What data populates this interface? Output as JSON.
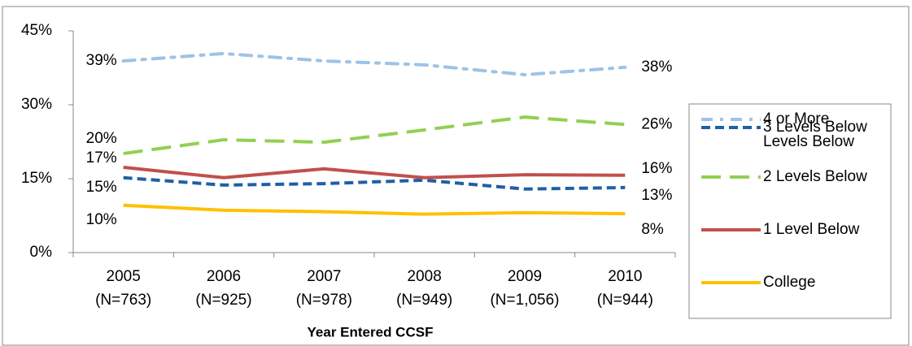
{
  "chart_data": {
    "type": "line",
    "x_label": "Year Entered CCSF",
    "categories": [
      [
        "2005",
        "(N=763)"
      ],
      [
        "2006",
        "(N=925)"
      ],
      [
        "2007",
        "(N=978)"
      ],
      [
        "2008",
        "(N=949)"
      ],
      [
        "2009",
        "(N=1,056)"
      ],
      [
        "2010",
        "(N=944)"
      ]
    ],
    "ylim": [
      0,
      45
    ],
    "yticks": [
      {
        "value": 0,
        "label": "0%"
      },
      {
        "value": 15,
        "label": "15%"
      },
      {
        "value": 30,
        "label": "30%"
      },
      {
        "value": 45,
        "label": "45%"
      }
    ],
    "grid": false,
    "legend": "right",
    "series": [
      {
        "name": "4 or More Levels Below",
        "color": "#9dc3e6",
        "dash": "dash-dot",
        "values": [
          38.9,
          40.4,
          38.9,
          38.1,
          36.1,
          37.6
        ],
        "value_labels": [
          "39%",
          null,
          null,
          null,
          null,
          "38%"
        ]
      },
      {
        "name": "3 Levels Below",
        "color": "#1f5fa8",
        "dash": "dash",
        "values": [
          15.2,
          13.7,
          14.0,
          14.7,
          12.9,
          13.2
        ],
        "value_labels": [
          "15%",
          null,
          null,
          null,
          null,
          "13%"
        ]
      },
      {
        "name": "2 Levels Below",
        "color": "#92d050",
        "dash": "long-dash",
        "values": [
          20.1,
          22.9,
          22.4,
          24.9,
          27.5,
          26.0
        ],
        "value_labels": [
          "20%",
          null,
          null,
          null,
          null,
          "26%"
        ]
      },
      {
        "name": "1 Level Below",
        "color": "#c0504d",
        "dash": "solid",
        "values": [
          17.3,
          15.2,
          17.0,
          15.2,
          15.8,
          15.7
        ],
        "value_labels": [
          "17%",
          null,
          null,
          null,
          null,
          "16%"
        ]
      },
      {
        "name": "College",
        "color": "#ffc000",
        "dash": "solid",
        "values": [
          9.6,
          8.6,
          8.3,
          7.8,
          8.1,
          7.9
        ],
        "value_labels": [
          "10%",
          null,
          null,
          null,
          null,
          "8%"
        ]
      }
    ]
  }
}
